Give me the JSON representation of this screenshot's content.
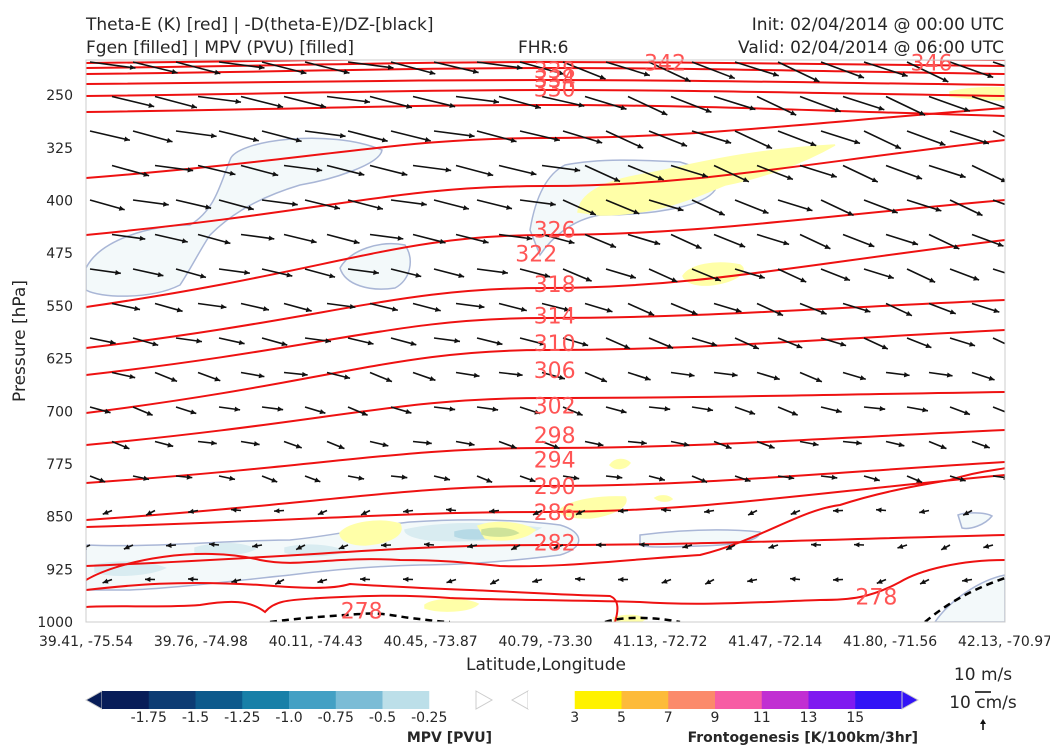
{
  "header": {
    "line1_left": "Theta-E (K) [red] | -D(theta-E)/DZ-[black]",
    "line2_left": "Fgen [filled] | MPV (PVU) [filled]",
    "fhr": "FHR:6",
    "init": "Init: 02/04/2014 @ 00:00 UTC",
    "valid": "Valid: 02/04/2014 @ 06:00 UTC"
  },
  "chart_data": {
    "type": "cross-section",
    "xlabel": "Latitude,Longitude",
    "ylabel": "Pressure [hPa]",
    "y_scale": "linear-inverted",
    "ylim": [
      1000,
      200
    ],
    "y_ticks": [
      250,
      325,
      400,
      475,
      550,
      625,
      700,
      775,
      850,
      925,
      1000
    ],
    "x_ticks": [
      "39.41, -75.54",
      "39.76, -74.98",
      "40.11, -74.43",
      "40.45, -73.87",
      "40.79, -73.30",
      "41.13, -72.72",
      "41.47, -72.14",
      "41.80, -71.56",
      "42.13, -70.97"
    ],
    "theta_e_contours": {
      "color": "#ee1111",
      "levels": [
        278,
        282,
        286,
        290,
        294,
        298,
        302,
        306,
        310,
        314,
        318,
        322,
        326,
        330,
        334,
        338,
        342,
        346
      ],
      "label_color": "#ff5555",
      "labels": [
        {
          "text": "278",
          "x": 0.3,
          "p": 985
        },
        {
          "text": "278",
          "x": 0.86,
          "p": 965
        },
        {
          "text": "282",
          "x": 0.51,
          "p": 888
        },
        {
          "text": "286",
          "x": 0.51,
          "p": 845
        },
        {
          "text": "290",
          "x": 0.51,
          "p": 808
        },
        {
          "text": "294",
          "x": 0.51,
          "p": 770
        },
        {
          "text": "298",
          "x": 0.51,
          "p": 735
        },
        {
          "text": "302",
          "x": 0.51,
          "p": 693
        },
        {
          "text": "306",
          "x": 0.51,
          "p": 643
        },
        {
          "text": "310",
          "x": 0.51,
          "p": 604
        },
        {
          "text": "314",
          "x": 0.51,
          "p": 565
        },
        {
          "text": "318",
          "x": 0.51,
          "p": 520
        },
        {
          "text": "322",
          "x": 0.49,
          "p": 477
        },
        {
          "text": "326",
          "x": 0.51,
          "p": 443
        },
        {
          "text": "330",
          "x": 0.51,
          "p": 427
        },
        {
          "text": "334",
          "x": 0.51,
          "p": 418
        },
        {
          "text": "338",
          "x": 0.51,
          "p": 410
        },
        {
          "text": "342",
          "x": 0.63,
          "p": 403
        },
        {
          "text": "346",
          "x": 0.92,
          "p": 403
        }
      ]
    },
    "stability_contour": {
      "color": "#000000",
      "style": "dashed"
    },
    "mpv_colorbar": {
      "title": "MPV [PVU]",
      "ticks": [
        "-1.75",
        "-1.5",
        "-1.25",
        "-1.0",
        "-0.75",
        "-0.5",
        "-0.25"
      ],
      "colors": [
        "#081d58",
        "#0c3b73",
        "#0d5a8c",
        "#1880a8",
        "#43a0c4",
        "#7bbcd6",
        "#bcdfe9",
        "#ffffff"
      ]
    },
    "fgen_colorbar": {
      "title": "Frontogenesis [K/100km/3hr]",
      "ticks": [
        "3",
        "5",
        "7",
        "9",
        "11",
        "13",
        "15"
      ],
      "colors": [
        "#ffffff",
        "#fff200",
        "#fdbb3a",
        "#fb8a6b",
        "#f75da4",
        "#c12fd2",
        "#7f1af0",
        "#3214f6"
      ]
    },
    "wind_reference": {
      "horizontal": "10 m/s",
      "vertical": "10 cm/s"
    }
  }
}
